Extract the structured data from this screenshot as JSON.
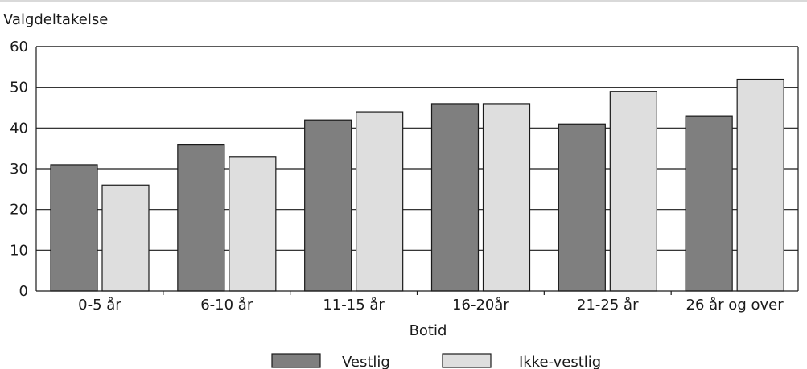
{
  "chart_data": {
    "type": "bar",
    "title": "",
    "ylabel": "Valgdeltakelse",
    "xlabel": "Botid",
    "ylim": [
      0,
      60
    ],
    "yticks": [
      0,
      10,
      20,
      30,
      40,
      50,
      60
    ],
    "grid": true,
    "legend_position": "bottom",
    "categories": [
      "0-5 år",
      "6-10 år",
      "11-15 år",
      "16-20år",
      "21-25 år",
      "26 år og over"
    ],
    "series": [
      {
        "name": "Vestlig",
        "color": "#7f7f7f",
        "values": [
          31,
          36,
          42,
          46,
          41,
          43
        ]
      },
      {
        "name": "Ikke-vestlig",
        "color": "#dedede",
        "values": [
          26,
          33,
          44,
          46,
          49,
          52
        ]
      }
    ]
  }
}
